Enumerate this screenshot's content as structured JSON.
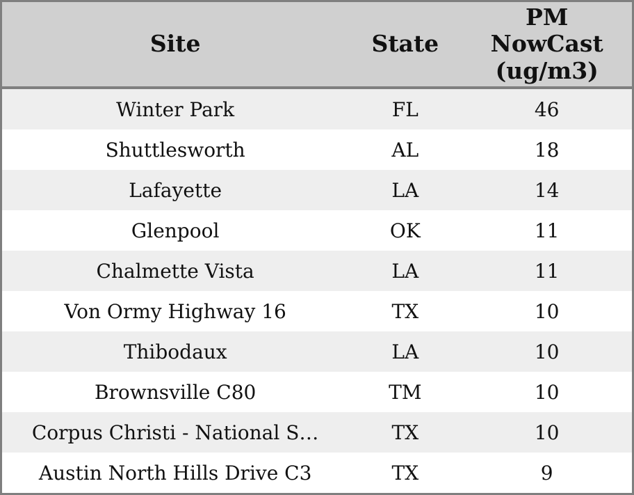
{
  "colors": {
    "header_bg": "#d0d0d0",
    "row_alt_bg": "#eeeeee",
    "row_bg": "#ffffff",
    "border": "#7f7f7f",
    "text": "#111111"
  },
  "table": {
    "columns": [
      {
        "id": "site",
        "label": "Site"
      },
      {
        "id": "state",
        "label": "State"
      },
      {
        "id": "pm",
        "label": "PM\nNowCast\n(ug/m3)"
      }
    ],
    "rows": [
      {
        "site": "Winter Park",
        "state": "FL",
        "pm": "46"
      },
      {
        "site": "Shuttlesworth",
        "state": "AL",
        "pm": "18"
      },
      {
        "site": "Lafayette",
        "state": "LA",
        "pm": "14"
      },
      {
        "site": "Glenpool",
        "state": "OK",
        "pm": "11"
      },
      {
        "site": "Chalmette Vista",
        "state": "LA",
        "pm": "11"
      },
      {
        "site": "Von Ormy Highway 16",
        "state": "TX",
        "pm": "10"
      },
      {
        "site": "Thibodaux",
        "state": "LA",
        "pm": "10"
      },
      {
        "site": "Brownsville C80",
        "state": "TM",
        "pm": "10"
      },
      {
        "site": "Corpus Christi - National S…",
        "state": "TX",
        "pm": "10"
      },
      {
        "site": "Austin North Hills Drive C3",
        "state": "TX",
        "pm": "9"
      }
    ]
  }
}
